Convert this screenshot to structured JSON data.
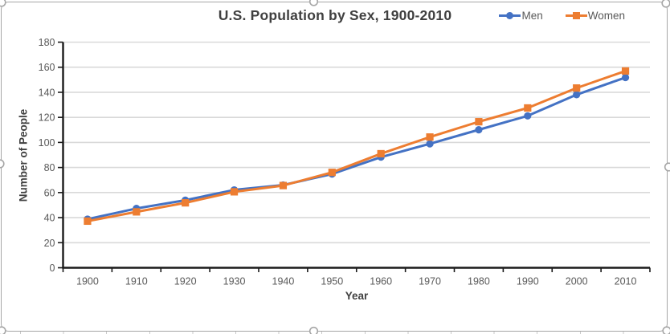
{
  "ui": {
    "app_context": "spreadsheet-embedded-chart",
    "chart_selected": true
  },
  "chart": {
    "title": "U.S. Population by Sex, 1900-2010",
    "x_axis_title": "Year",
    "y_axis_title": "Number of People"
  },
  "legend": {
    "position": "top-right",
    "items": [
      {
        "label": "Men",
        "color": "#4472C4",
        "marker": "circle"
      },
      {
        "label": "Women",
        "color": "#ED7D31",
        "marker": "square"
      }
    ]
  },
  "chart_data": {
    "type": "line",
    "title": "U.S. Population by Sex, 1900-2010",
    "xlabel": "Year",
    "ylabel": "Number of People",
    "categories": [
      "1900",
      "1910",
      "1920",
      "1930",
      "1940",
      "1950",
      "1960",
      "1970",
      "1980",
      "1990",
      "2000",
      "2010"
    ],
    "series": [
      {
        "name": "Men",
        "color": "#4472C4",
        "marker": "circle",
        "values": [
          38.8,
          47.3,
          53.9,
          62.1,
          66.0,
          74.8,
          88.3,
          98.9,
          110.1,
          121.2,
          138.1,
          151.8
        ]
      },
      {
        "name": "Women",
        "color": "#ED7D31",
        "marker": "square",
        "values": [
          37.2,
          44.6,
          51.8,
          60.6,
          65.6,
          76.1,
          91.0,
          104.3,
          116.5,
          127.5,
          143.4,
          157.0
        ]
      }
    ],
    "ylim": [
      0,
      180
    ],
    "ytick_step": 20,
    "grid": true,
    "gridline_color": "#D9D9D9",
    "axis_color": "#1a1a1a",
    "tick_label_color": "#595959",
    "legend_position": "top-right"
  }
}
